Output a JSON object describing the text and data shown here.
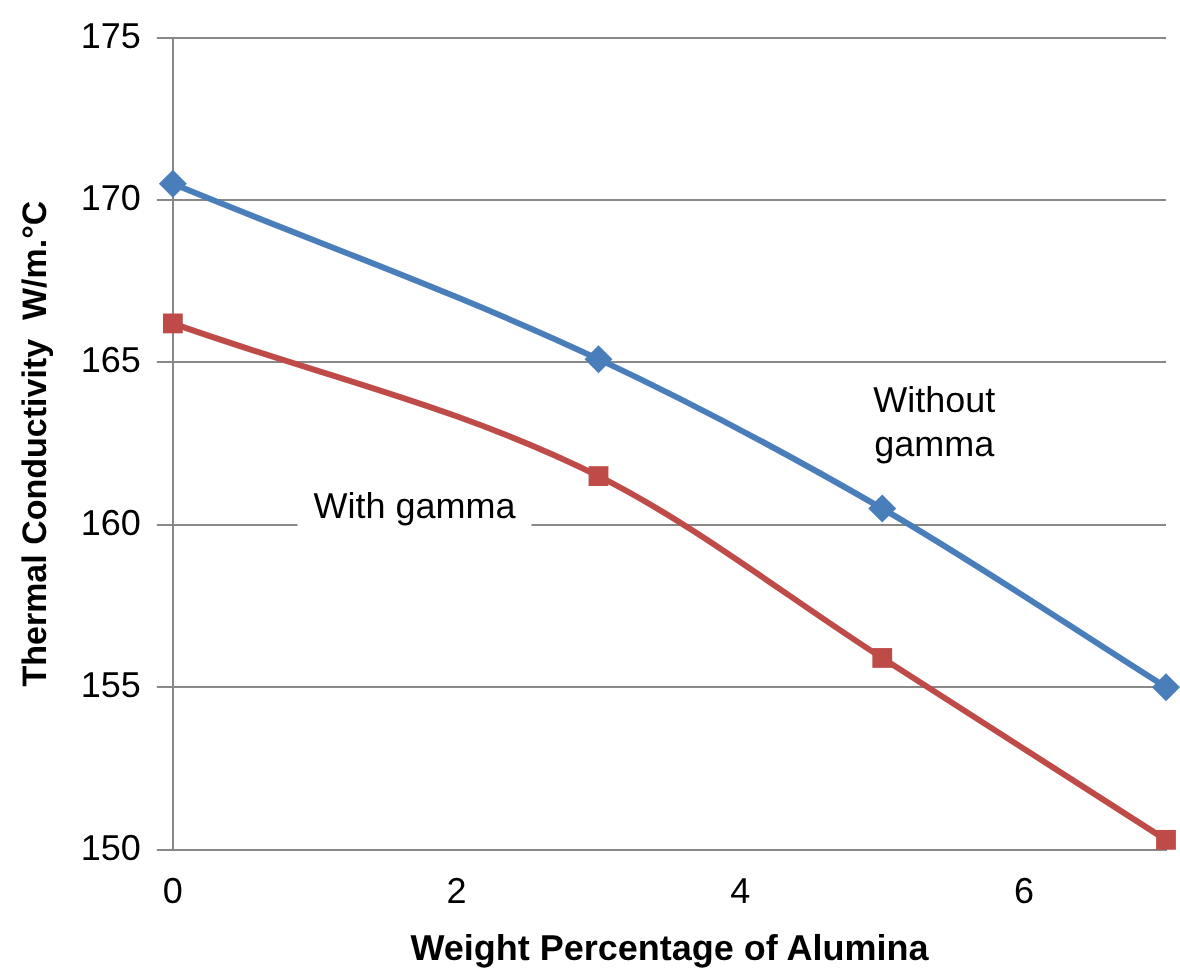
{
  "chart_data": {
    "type": "line",
    "xlabel": "Weight Percentage of Alumina",
    "ylabel": "Thermal Conductivity  W/m.°C",
    "x": [
      0,
      3,
      5,
      7
    ],
    "series": [
      {
        "name": "Without gamma",
        "color": "#4a7ebb",
        "marker": "diamond",
        "values": [
          170.5,
          165.1,
          160.5,
          155.0
        ]
      },
      {
        "name": "With gamma",
        "color": "#be4b48",
        "marker": "square",
        "values": [
          166.2,
          161.5,
          155.9,
          150.3
        ]
      }
    ],
    "xlim": [
      0,
      7
    ],
    "xticks": [
      0,
      2,
      4,
      6
    ],
    "ylim": [
      150,
      175
    ],
    "yticks": [
      150,
      155,
      160,
      165,
      170,
      175
    ],
    "grid": "y",
    "legend": false
  }
}
